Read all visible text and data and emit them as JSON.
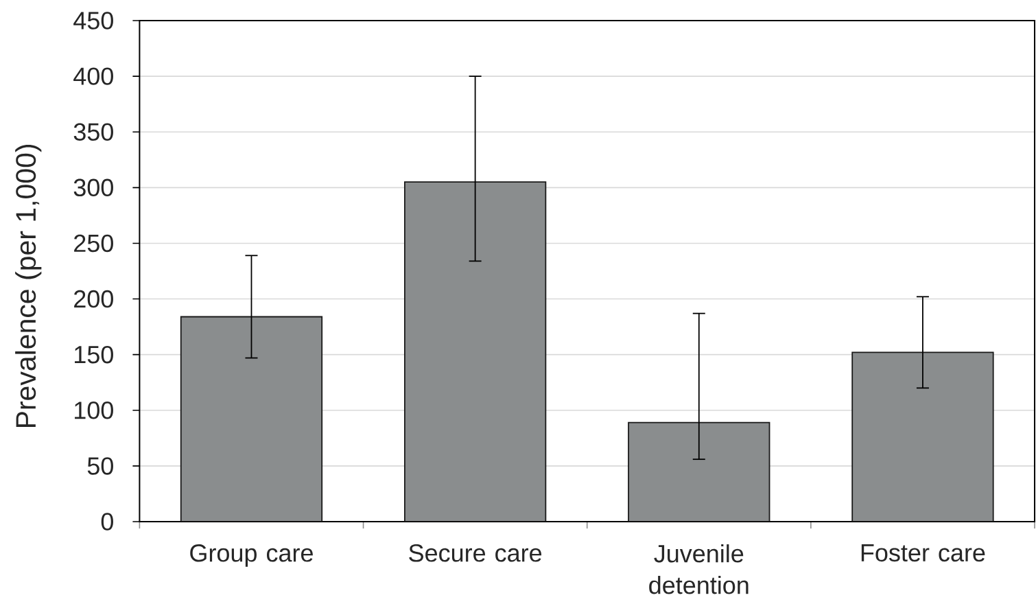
{
  "chart_data": {
    "type": "bar",
    "ylabel": "Prevalence (per 1,000)",
    "categories": [
      "Group care",
      "Secure care",
      "Juvenile detention",
      "Foster care"
    ],
    "values": [
      184,
      305,
      89,
      152
    ],
    "errors": [
      [
        147,
        239
      ],
      [
        234,
        400
      ],
      [
        56,
        187
      ],
      [
        120,
        202
      ]
    ],
    "color": "#8a8d8e",
    "ylim": [
      0,
      450
    ],
    "yticks": [
      0,
      50,
      100,
      150,
      200,
      250,
      300,
      350,
      400,
      450
    ],
    "grid": "y"
  }
}
